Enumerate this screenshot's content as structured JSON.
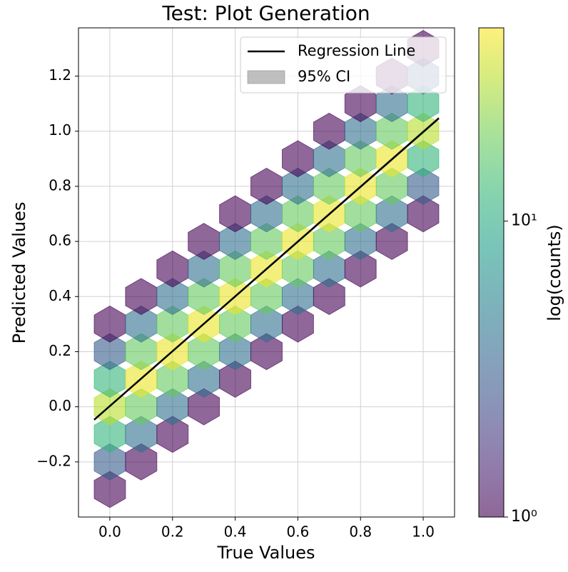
{
  "chart_data": {
    "type": "hexbin",
    "title": "Test: Plot Generation",
    "xlabel": "True Values",
    "ylabel": "Predicted Values",
    "colorbar_label": "log(counts)",
    "xlim": [
      -0.1,
      1.1
    ],
    "ylim": [
      -0.4,
      1.375
    ],
    "xticks": [
      {
        "value": 0,
        "label": "0.0"
      },
      {
        "value": 0.2,
        "label": "0.2"
      },
      {
        "value": 0.4,
        "label": "0.4"
      },
      {
        "value": 0.6,
        "label": "0.6"
      },
      {
        "value": 0.8,
        "label": "0.8"
      },
      {
        "value": 1,
        "label": "1.0"
      }
    ],
    "yticks": [
      {
        "value": -0.2,
        "label": "−0.2"
      },
      {
        "value": 0,
        "label": "0.0"
      },
      {
        "value": 0.2,
        "label": "0.2"
      },
      {
        "value": 0.4,
        "label": "0.4"
      },
      {
        "value": 0.6,
        "label": "0.6"
      },
      {
        "value": 0.8,
        "label": "0.8"
      },
      {
        "value": 1,
        "label": "1.0"
      },
      {
        "value": 1.2,
        "label": "1.2"
      }
    ],
    "grid": true,
    "colormap": "viridis",
    "log_color": true,
    "clim": [
      1,
      45
    ],
    "cticks": [
      {
        "value": 1,
        "label": "10⁰"
      },
      {
        "value": 10,
        "label": "10¹"
      }
    ],
    "x": [
      0,
      0,
      0,
      0,
      0,
      0,
      0,
      0.1,
      0.1,
      0.1,
      0.1,
      0.1,
      0.1,
      0.1,
      0.2,
      0.2,
      0.2,
      0.2,
      0.2,
      0.2,
      0.2,
      0.3,
      0.3,
      0.3,
      0.3,
      0.3,
      0.3,
      0.3,
      0.4,
      0.4,
      0.4,
      0.4,
      0.4,
      0.4,
      0.4,
      0.5,
      0.5,
      0.5,
      0.5,
      0.5,
      0.5,
      0.5,
      0.6,
      0.6,
      0.6,
      0.6,
      0.6,
      0.6,
      0.6,
      0.7,
      0.7,
      0.7,
      0.7,
      0.7,
      0.7,
      0.7,
      0.8,
      0.8,
      0.8,
      0.8,
      0.8,
      0.8,
      0.8,
      0.9,
      0.9,
      0.9,
      0.9,
      0.9,
      0.9,
      0.9,
      1,
      1,
      1,
      1,
      1,
      1,
      1
    ],
    "y": [
      -0.3,
      -0.2,
      -0.1,
      0,
      0.1,
      0.2,
      0.3,
      -0.2,
      -0.1,
      0,
      0.1,
      0.2,
      0.3,
      0.4,
      -0.1,
      0,
      0.1,
      0.2,
      0.3,
      0.4,
      0.5,
      0,
      0.1,
      0.2,
      0.3,
      0.4,
      0.5,
      0.6,
      0.1,
      0.2,
      0.3,
      0.4,
      0.5,
      0.6,
      0.7,
      0.2,
      0.3,
      0.4,
      0.5,
      0.6,
      0.7,
      0.8,
      0.3,
      0.4,
      0.5,
      0.6,
      0.7,
      0.8,
      0.9,
      0.4,
      0.5,
      0.6,
      0.7,
      0.8,
      0.9,
      1,
      0.5,
      0.6,
      0.7,
      0.8,
      0.9,
      1,
      1.1,
      0.6,
      0.7,
      0.8,
      0.9,
      1,
      1.1,
      1.2,
      0.7,
      0.8,
      0.9,
      1,
      1.1,
      1.2,
      1.3
    ],
    "counts": [
      1,
      3,
      12,
      30,
      12,
      3,
      1,
      1,
      4,
      18,
      40,
      18,
      4,
      1,
      1,
      4,
      18,
      40,
      18,
      4,
      1,
      1,
      4,
      18,
      40,
      18,
      4,
      1,
      1,
      4,
      18,
      40,
      18,
      4,
      1,
      1,
      4,
      18,
      40,
      18,
      4,
      1,
      1,
      4,
      18,
      40,
      18,
      4,
      1,
      1,
      4,
      18,
      40,
      18,
      4,
      1,
      1,
      4,
      18,
      40,
      18,
      4,
      1,
      1,
      4,
      18,
      40,
      18,
      4,
      1,
      1,
      3,
      12,
      30,
      12,
      3,
      1
    ],
    "regression": {
      "name": "Regression Line",
      "color": "#000000",
      "x": [
        -0.05,
        1.05
      ],
      "y": [
        -0.047,
        1.047
      ]
    },
    "ci": {
      "name": "95% CI",
      "color": "#808080",
      "lower": [
        -0.051,
        1.041
      ],
      "upper": [
        -0.043,
        1.053
      ]
    },
    "legend": "upper right"
  }
}
